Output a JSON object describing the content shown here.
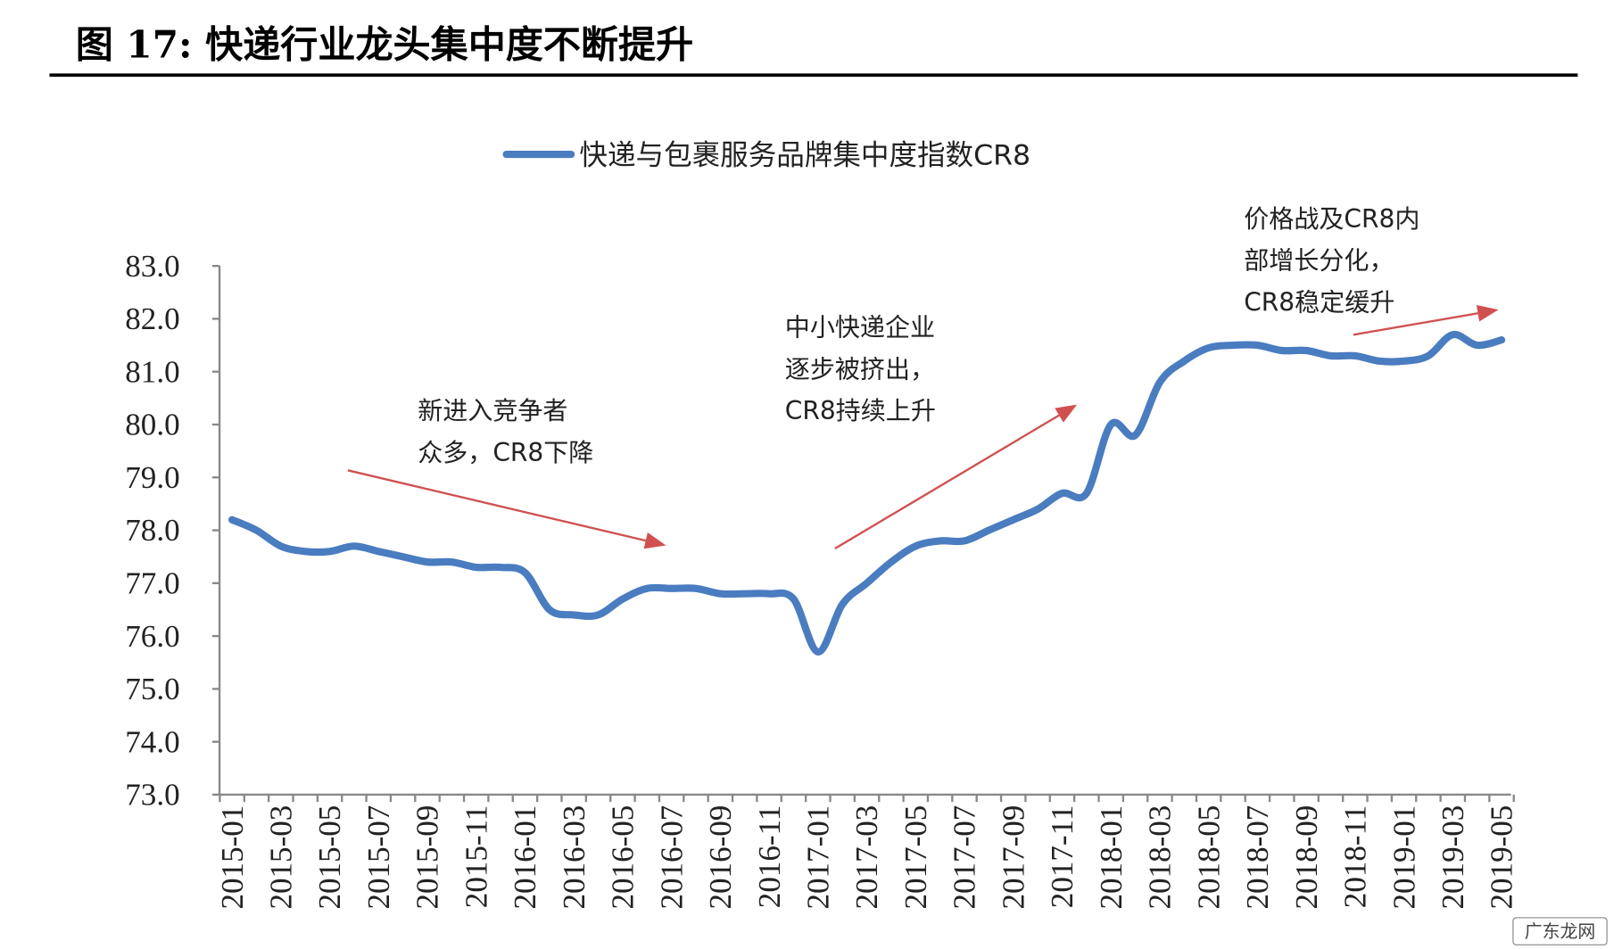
{
  "figure_title": "图  17:  快递行业龙头集中度不断提升",
  "watermark": "广东龙网",
  "chart_data": {
    "type": "line",
    "title": "",
    "xlabel": "",
    "ylabel": "",
    "ylim": [
      73.0,
      83.0
    ],
    "yticks": [
      "73.0",
      "74.0",
      "75.0",
      "76.0",
      "77.0",
      "78.0",
      "79.0",
      "80.0",
      "81.0",
      "82.0",
      "83.0"
    ],
    "legend_position": "top",
    "grid": false,
    "x": [
      "2015-01",
      "2015-02",
      "2015-03",
      "2015-04",
      "2015-05",
      "2015-06",
      "2015-07",
      "2015-08",
      "2015-09",
      "2015-10",
      "2015-11",
      "2015-12",
      "2016-01",
      "2016-02",
      "2016-03",
      "2016-04",
      "2016-05",
      "2016-06",
      "2016-07",
      "2016-08",
      "2016-09",
      "2016-10",
      "2016-11",
      "2016-12",
      "2017-01",
      "2017-02",
      "2017-03",
      "2017-04",
      "2017-05",
      "2017-06",
      "2017-07",
      "2017-08",
      "2017-09",
      "2017-10",
      "2017-11",
      "2017-12",
      "2018-01",
      "2018-02",
      "2018-03",
      "2018-04",
      "2018-05",
      "2018-06",
      "2018-07",
      "2018-08",
      "2018-09",
      "2018-10",
      "2018-11",
      "2018-12",
      "2019-01",
      "2019-02",
      "2019-03",
      "2019-04",
      "2019-05"
    ],
    "xtick_labels": [
      "2015-01",
      "2015-03",
      "2015-05",
      "2015-07",
      "2015-09",
      "2015-11",
      "2016-01",
      "2016-03",
      "2016-05",
      "2016-07",
      "2016-09",
      "2016-11",
      "2017-01",
      "2017-03",
      "2017-05",
      "2017-07",
      "2017-09",
      "2017-11",
      "2018-01",
      "2018-03",
      "2018-05",
      "2018-07",
      "2018-09",
      "2018-11",
      "2019-01",
      "2019-03",
      "2019-05"
    ],
    "series": [
      {
        "name": "快递与包裹服务品牌集中度指数CR8",
        "color": "#4a7cc0",
        "values": [
          78.2,
          78.0,
          77.7,
          77.6,
          77.6,
          77.7,
          77.6,
          77.5,
          77.4,
          77.4,
          77.3,
          77.3,
          77.2,
          76.5,
          76.4,
          76.4,
          76.7,
          76.9,
          76.9,
          76.9,
          76.8,
          76.8,
          76.8,
          76.7,
          75.7,
          76.6,
          77.0,
          77.4,
          77.7,
          77.8,
          77.8,
          78.0,
          78.2,
          78.4,
          78.7,
          78.7,
          80.0,
          79.8,
          80.8,
          81.2,
          81.45,
          81.5,
          81.5,
          81.4,
          81.4,
          81.3,
          81.3,
          81.2,
          81.2,
          81.3,
          81.7,
          81.5,
          81.6
        ]
      }
    ],
    "annotations": [
      {
        "lines": [
          "新进入竞争者",
          "众多，CR8下降"
        ]
      },
      {
        "lines": [
          "中小快递企业",
          "逐步被挤出，",
          "CR8持续上升"
        ]
      },
      {
        "lines": [
          "价格战及CR8内",
          "部增长分化，",
          "CR8稳定缓升"
        ]
      }
    ],
    "arrow_color": "#d05050"
  }
}
